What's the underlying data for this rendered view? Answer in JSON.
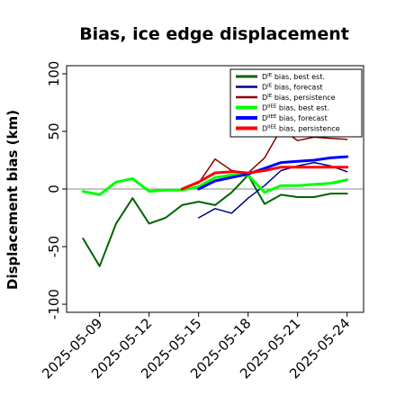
{
  "chart_data": {
    "type": "line",
    "title": "Bias, ice edge displacement",
    "xlabel": "",
    "ylabel": "Displacement bias (km)",
    "xlim": [
      "2025-05-07",
      "2025-05-25"
    ],
    "ylim": [
      -107,
      107
    ],
    "yticks": [
      -100,
      -50,
      0,
      50,
      100
    ],
    "xticks": [
      {
        "label": "2025-05-09",
        "date": "2025-05-09",
        "color": "#000000"
      },
      {
        "label": "2025-05-12",
        "date": "2025-05-12",
        "color": "#000000"
      },
      {
        "label": "2025-05-15",
        "date": "2025-05-15",
        "color": "#228B22"
      },
      {
        "label": "2025-05-18",
        "date": "2025-05-18",
        "color": "#000000"
      },
      {
        "label": "2025-05-21",
        "date": "2025-05-21",
        "color": "#000000"
      },
      {
        "label": "2025-05-24",
        "date": "2025-05-24",
        "color": "#000000"
      }
    ],
    "reference_line": 0,
    "legend_position": "upper right",
    "series": [
      {
        "name": "D^IE bias, best est.",
        "legend_main": "D",
        "legend_sup": "IE",
        "legend_rest": " bias, best est.",
        "color": "#006400",
        "width": 2,
        "points": [
          [
            "2025-05-08",
            -43
          ],
          [
            "2025-05-09",
            -67
          ],
          [
            "2025-05-10",
            -30
          ],
          [
            "2025-05-11",
            -8
          ],
          [
            "2025-05-12",
            -30
          ],
          [
            "2025-05-13",
            -25
          ],
          [
            "2025-05-14",
            -14
          ],
          [
            "2025-05-15",
            -11
          ],
          [
            "2025-05-16",
            -14
          ],
          [
            "2025-05-17",
            -3
          ],
          [
            "2025-05-18",
            12
          ],
          [
            "2025-05-19",
            -13
          ],
          [
            "2025-05-20",
            -5
          ],
          [
            "2025-05-21",
            -7
          ],
          [
            "2025-05-22",
            -7
          ],
          [
            "2025-05-23",
            -4
          ],
          [
            "2025-05-24",
            -4
          ]
        ]
      },
      {
        "name": "D^IE bias, forecast",
        "legend_main": "D",
        "legend_sup": "IE",
        "legend_rest": " bias, forecast",
        "color": "#00008B",
        "width": 1.5,
        "points": [
          [
            "2025-05-15",
            -25
          ],
          [
            "2025-05-16",
            -17
          ],
          [
            "2025-05-17",
            -21
          ],
          [
            "2025-05-18",
            -8
          ],
          [
            "2025-05-19",
            3
          ],
          [
            "2025-05-20",
            16
          ],
          [
            "2025-05-21",
            20
          ],
          [
            "2025-05-22",
            23
          ],
          [
            "2025-05-23",
            20
          ],
          [
            "2025-05-24",
            15
          ]
        ]
      },
      {
        "name": "D^IE bias, persistence",
        "legend_main": "D",
        "legend_sup": "IE",
        "legend_rest": " bias, persistence",
        "color": "#8B0000",
        "width": 1.5,
        "points": [
          [
            "2025-05-14",
            0
          ],
          [
            "2025-05-15",
            5
          ],
          [
            "2025-05-16",
            26
          ],
          [
            "2025-05-17",
            16
          ],
          [
            "2025-05-18",
            14
          ],
          [
            "2025-05-19",
            27
          ],
          [
            "2025-05-20",
            52
          ],
          [
            "2025-05-21",
            42
          ],
          [
            "2025-05-22",
            45
          ],
          [
            "2025-05-23",
            44
          ],
          [
            "2025-05-24",
            43
          ]
        ]
      },
      {
        "name": "D^IIEE bias, best est.",
        "legend_main": "D",
        "legend_sup": "IIEE",
        "legend_rest": " bias, best est.",
        "color": "#00FF00",
        "width": 3,
        "points": [
          [
            "2025-05-08",
            -2
          ],
          [
            "2025-05-09",
            -5
          ],
          [
            "2025-05-10",
            6
          ],
          [
            "2025-05-11",
            9
          ],
          [
            "2025-05-12",
            -2
          ],
          [
            "2025-05-13",
            -1
          ],
          [
            "2025-05-14",
            -1
          ],
          [
            "2025-05-15",
            2
          ],
          [
            "2025-05-16",
            10
          ],
          [
            "2025-05-17",
            12
          ],
          [
            "2025-05-18",
            12
          ],
          [
            "2025-05-19",
            -3
          ],
          [
            "2025-05-20",
            3
          ],
          [
            "2025-05-21",
            3
          ],
          [
            "2025-05-22",
            4
          ],
          [
            "2025-05-23",
            5
          ],
          [
            "2025-05-24",
            8
          ]
        ]
      },
      {
        "name": "D^IIEE bias, forecast",
        "legend_main": "D",
        "legend_sup": "IIEE",
        "legend_rest": " bias, forecast",
        "color": "#0000FF",
        "width": 3,
        "points": [
          [
            "2025-05-15",
            0
          ],
          [
            "2025-05-16",
            7
          ],
          [
            "2025-05-17",
            10
          ],
          [
            "2025-05-18",
            13
          ],
          [
            "2025-05-19",
            18
          ],
          [
            "2025-05-20",
            23
          ],
          [
            "2025-05-21",
            24
          ],
          [
            "2025-05-22",
            25
          ],
          [
            "2025-05-23",
            27
          ],
          [
            "2025-05-24",
            28
          ]
        ]
      },
      {
        "name": "D^IIEE bias, persistence",
        "legend_main": "D",
        "legend_sup": "IIEE",
        "legend_rest": " bias, persistence",
        "color": "#FF0000",
        "width": 3,
        "points": [
          [
            "2025-05-14",
            0
          ],
          [
            "2025-05-15",
            6
          ],
          [
            "2025-05-16",
            14
          ],
          [
            "2025-05-17",
            15
          ],
          [
            "2025-05-18",
            14
          ],
          [
            "2025-05-19",
            16
          ],
          [
            "2025-05-20",
            19
          ],
          [
            "2025-05-21",
            19
          ],
          [
            "2025-05-22",
            19
          ],
          [
            "2025-05-23",
            19
          ],
          [
            "2025-05-24",
            19
          ]
        ]
      }
    ]
  }
}
